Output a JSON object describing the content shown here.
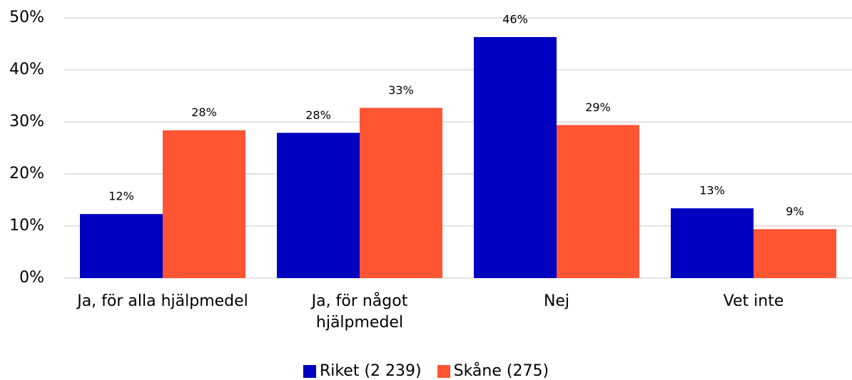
{
  "chart_data": {
    "type": "bar",
    "categories": [
      "Ja, för alla hjälpmedel",
      "Ja, för något hjälpmedel",
      "Nej",
      "Vet inte"
    ],
    "series": [
      {
        "name": "Riket (2 239)",
        "color": "#0000c0",
        "values": [
          12.3,
          27.9,
          46.3,
          13.4
        ],
        "value_labels": [
          "12%",
          "28%",
          "46%",
          "13%"
        ]
      },
      {
        "name": "Skåne (275)",
        "color": "#ff5533",
        "values": [
          28.4,
          32.7,
          29.4,
          9.4
        ],
        "value_labels": [
          "28%",
          "33%",
          "29%",
          "9%"
        ]
      }
    ],
    "ylim": [
      0,
      50
    ],
    "yticks": [
      {
        "value": 0,
        "label": "0%"
      },
      {
        "value": 10,
        "label": "10%"
      },
      {
        "value": 20,
        "label": "20%"
      },
      {
        "value": 30,
        "label": "30%"
      },
      {
        "value": 40,
        "label": "40%"
      },
      {
        "value": 50,
        "label": "50%"
      }
    ],
    "grid": true,
    "legend": "bottom"
  }
}
